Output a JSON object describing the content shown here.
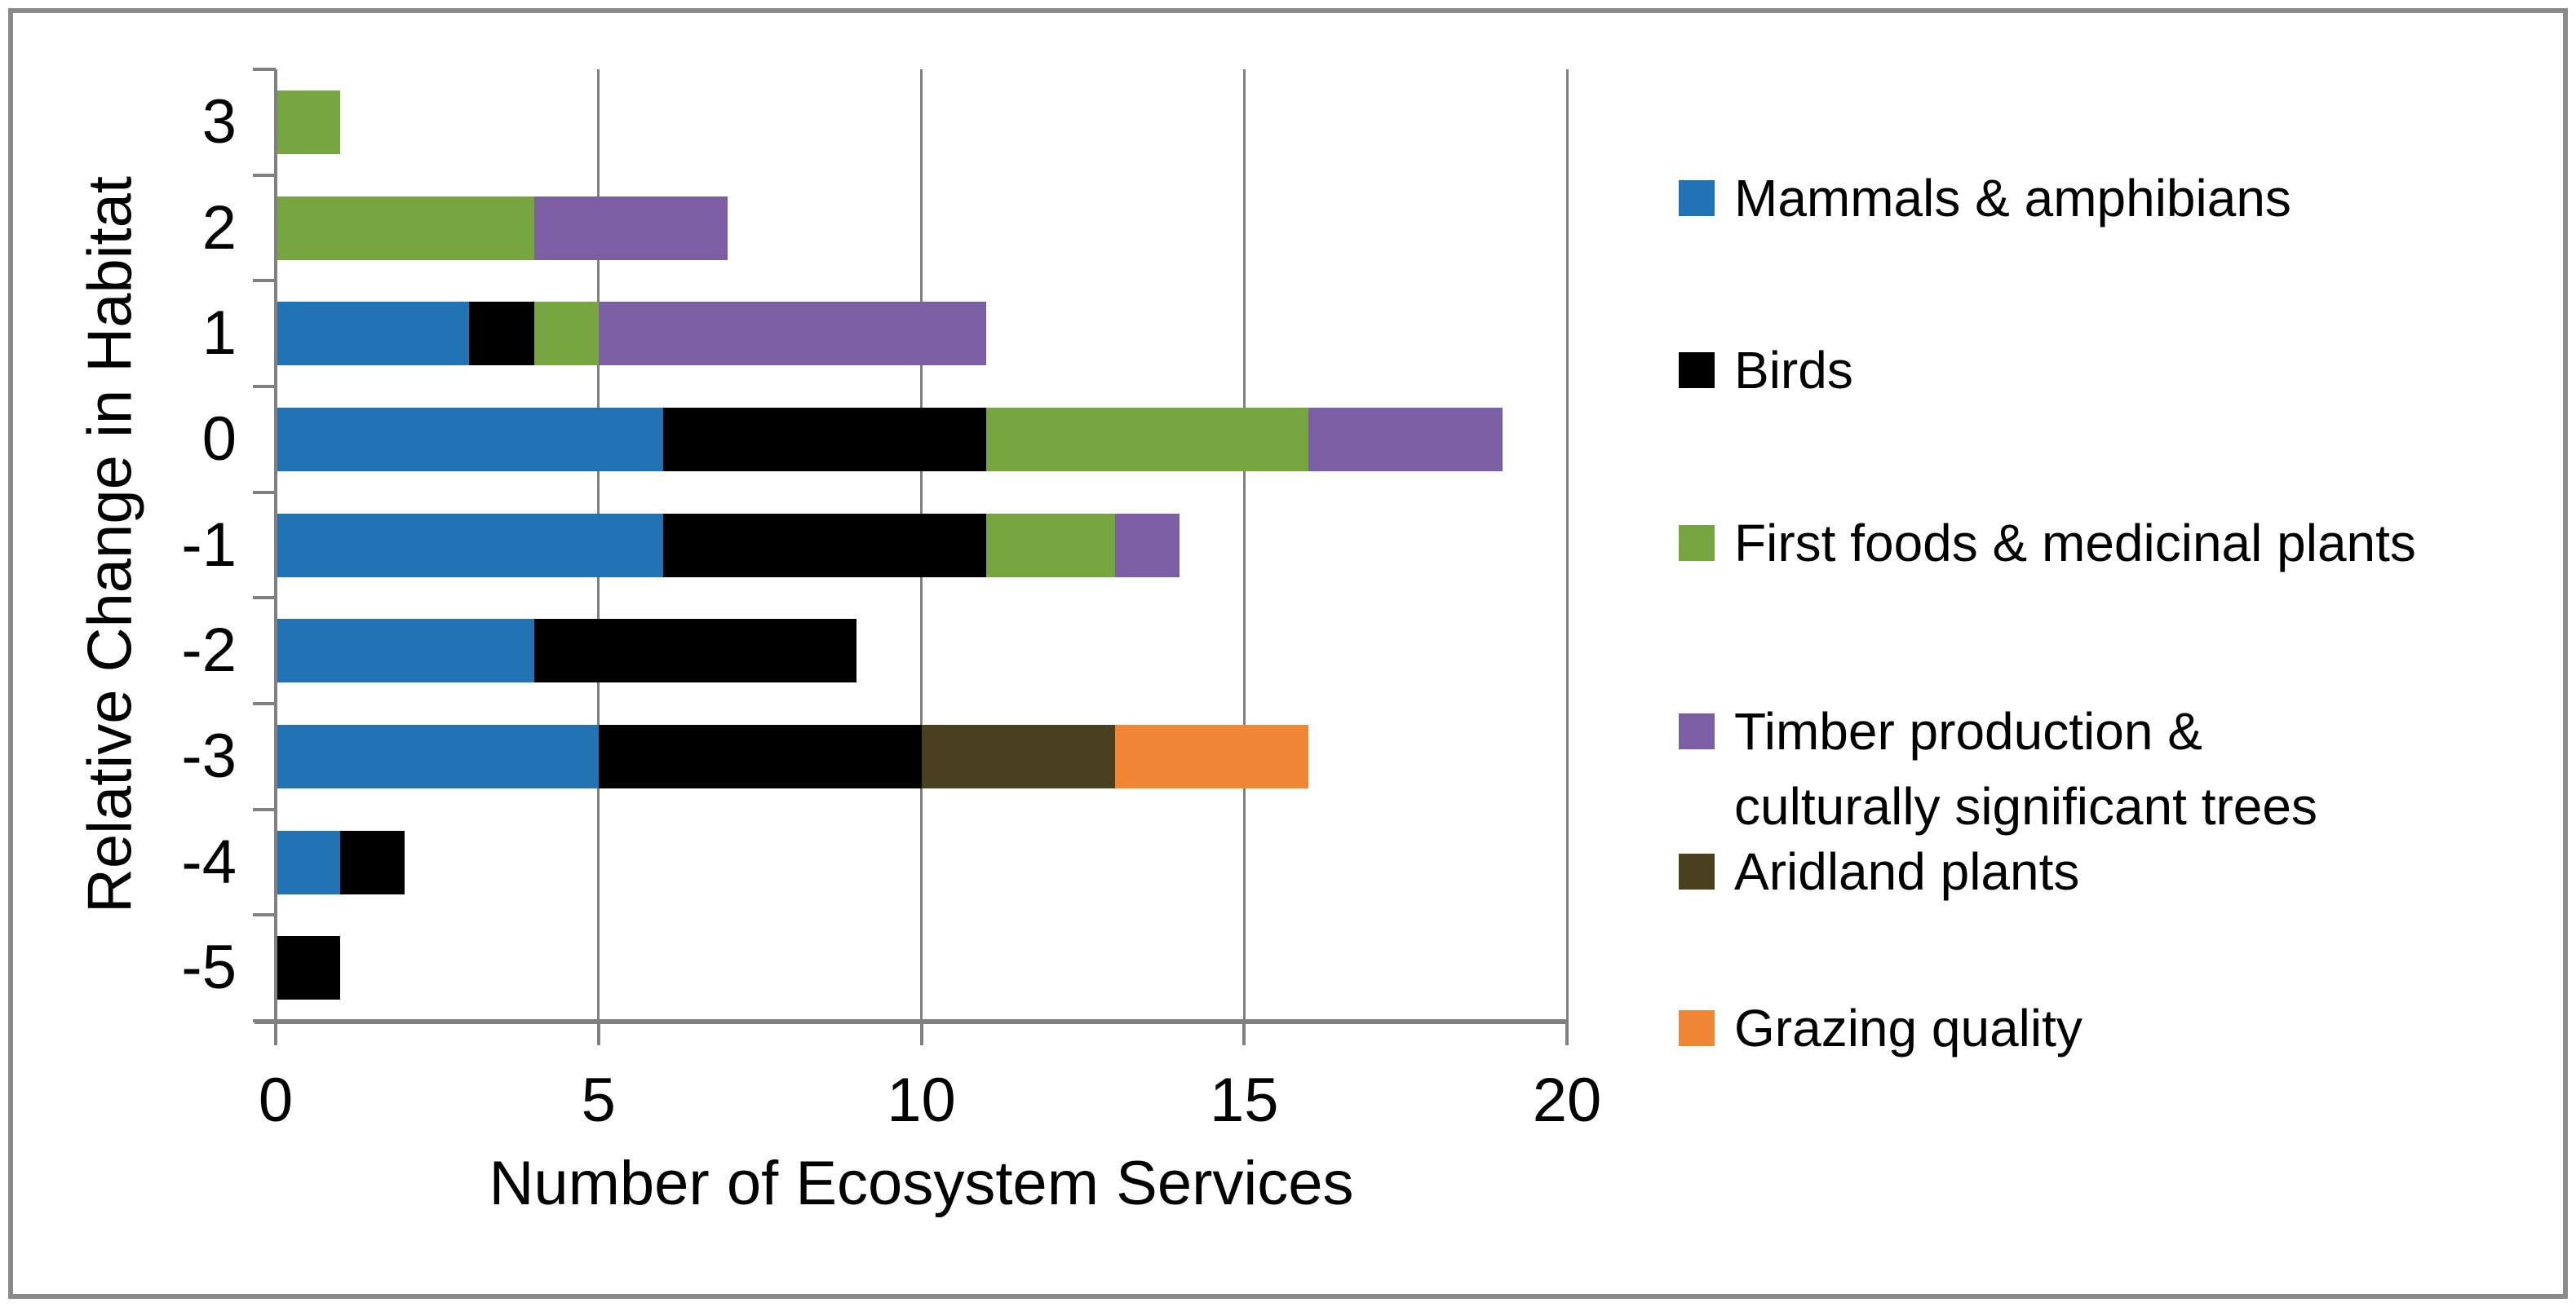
{
  "figure": {
    "background": "#ffffff",
    "border_color": "#8A8A8A"
  },
  "axis_colors": {
    "gridline": "#808080",
    "axis_line": "#808080",
    "tick": "#808080",
    "text": "#000000"
  },
  "chart_data": {
    "type": "bar",
    "orientation": "horizontal",
    "stacked": true,
    "title": "",
    "xlabel": "Number of Ecosystem Services",
    "ylabel": "Relative Change in Habitat",
    "categories": [
      "3",
      "2",
      "1",
      "0",
      "-1",
      "-2",
      "-3",
      "-4",
      "-5"
    ],
    "x_ticks": [
      0,
      5,
      10,
      15,
      20
    ],
    "xlim": [
      0,
      20
    ],
    "grid": "vertical",
    "legend_position": "right",
    "series": [
      {
        "name": "Mammals & amphibians",
        "color": "#2173B4",
        "values": [
          0,
          0,
          3,
          6,
          6,
          4,
          5,
          1,
          0
        ]
      },
      {
        "name": "Birds",
        "color": "#000000",
        "values": [
          0,
          0,
          1,
          5,
          5,
          5,
          5,
          1,
          1
        ]
      },
      {
        "name": "First foods & medicinal plants",
        "color": "#77A53F",
        "values": [
          1,
          4,
          1,
          5,
          2,
          0,
          0,
          0,
          0
        ]
      },
      {
        "name": "Timber production & culturally significant trees",
        "legend_lines": [
          "Timber production &",
          "culturally significant trees"
        ],
        "color": "#7C5EA4",
        "values": [
          0,
          3,
          6,
          3,
          1,
          0,
          0,
          0,
          0
        ]
      },
      {
        "name": "Aridland plants",
        "color": "#48401F",
        "values": [
          0,
          0,
          0,
          0,
          0,
          0,
          3,
          0,
          0
        ]
      },
      {
        "name": "Grazing quality",
        "color": "#F08536",
        "values": [
          0,
          0,
          0,
          0,
          0,
          0,
          3,
          0,
          0
        ]
      }
    ],
    "category_totals": [
      1,
      7,
      11,
      19,
      14,
      9,
      16,
      2,
      1
    ]
  }
}
